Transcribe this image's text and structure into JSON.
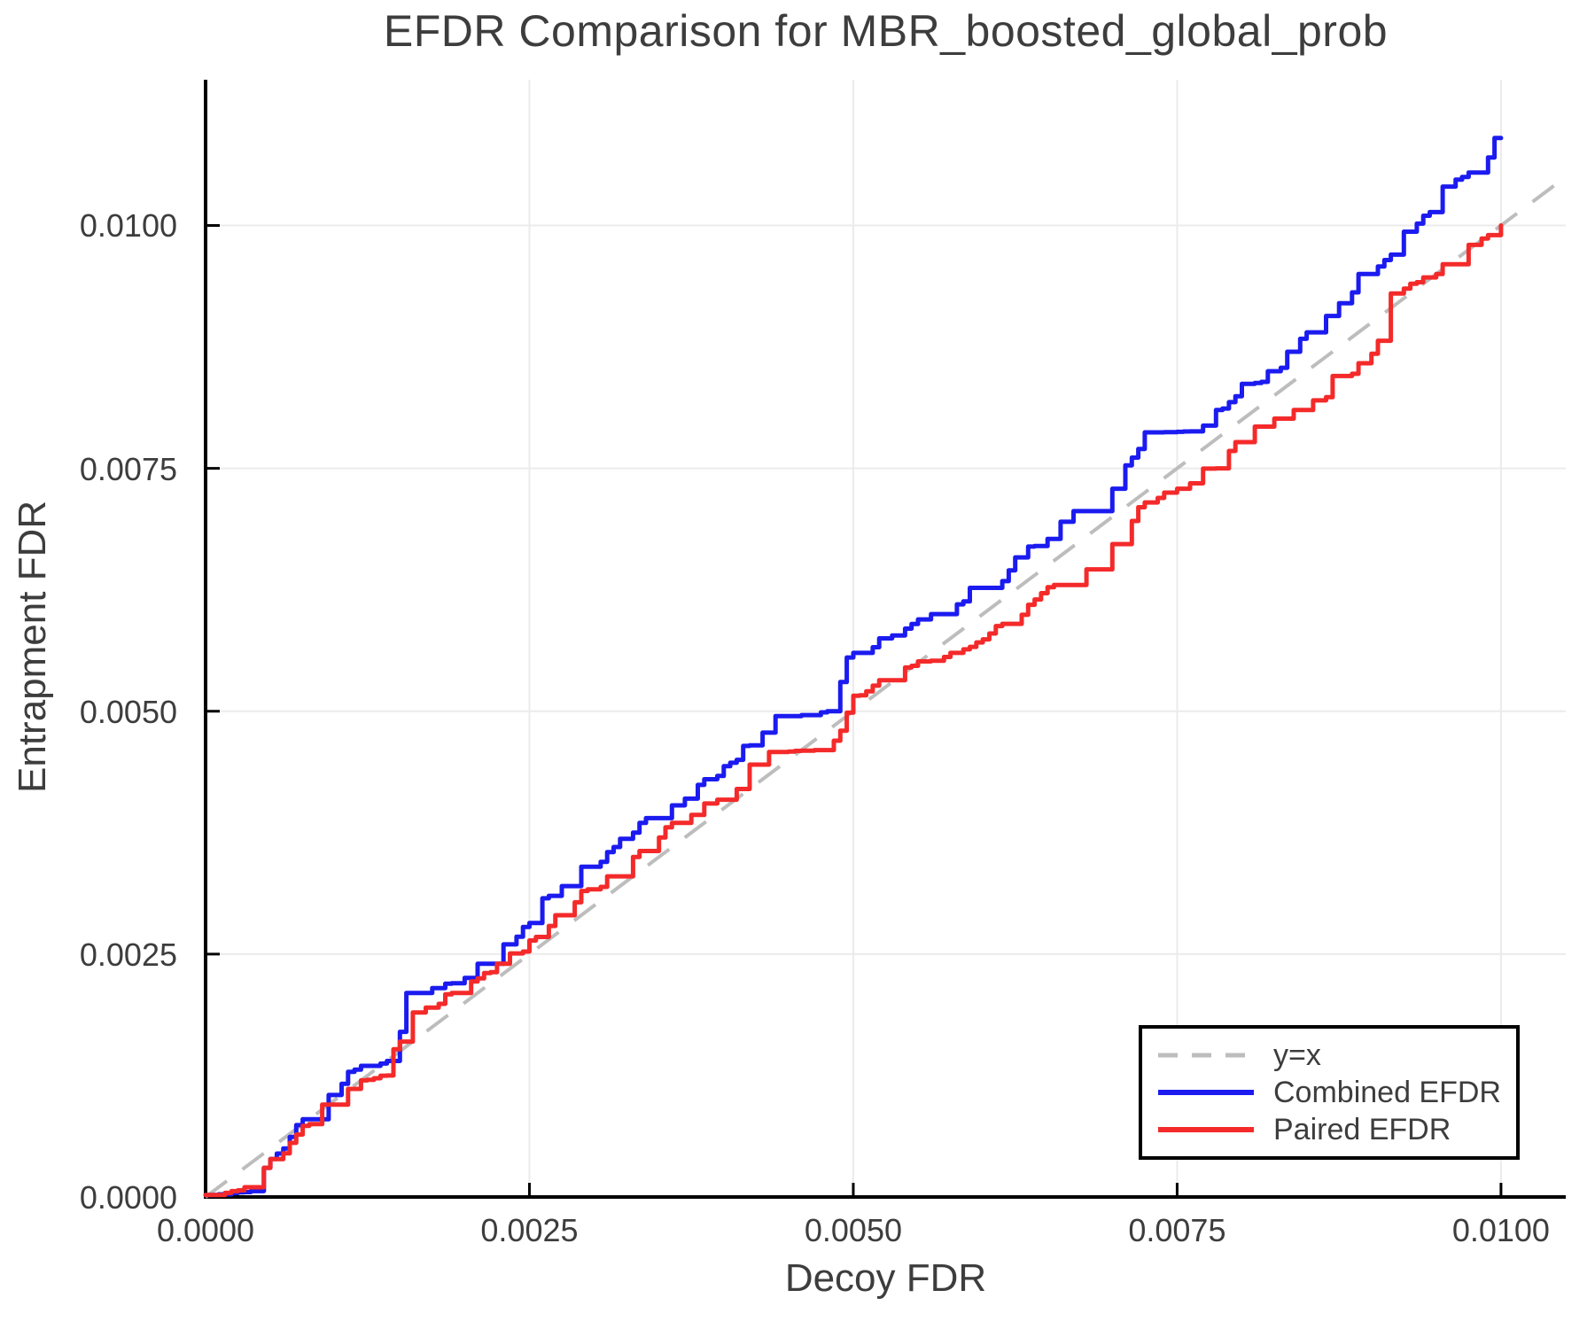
{
  "title": "EFDR Comparison for MBR_boosted_global_prob",
  "axes": {
    "x": {
      "label": "Decoy FDR",
      "tick_labels": [
        "0.0000",
        "0.0025",
        "0.0050",
        "0.0075",
        "0.0100"
      ],
      "tick_values": [
        0,
        0.0025,
        0.005,
        0.0075,
        0.01
      ]
    },
    "y": {
      "label": "Entrapment FDR",
      "tick_labels": [
        "0.0000",
        "0.0025",
        "0.0050",
        "0.0075",
        "0.0100"
      ],
      "tick_values": [
        0,
        0.0025,
        0.005,
        0.0075,
        0.01
      ]
    }
  },
  "legend": {
    "items": [
      {
        "label": "y=x",
        "color": "#bdbdbd",
        "style": "dashed"
      },
      {
        "label": "Combined EFDR",
        "color": "#1b1bf0",
        "style": "solid"
      },
      {
        "label": "Paired EFDR",
        "color": "#f42a2a",
        "style": "solid"
      }
    ]
  },
  "colors": {
    "grid": "#ebebeb",
    "spine": "#000000",
    "text": "#3d3d3d",
    "background": "#ffffff"
  },
  "chart_data": {
    "type": "line",
    "title": "EFDR Comparison for MBR_boosted_global_prob",
    "xlabel": "Decoy FDR",
    "ylabel": "Entrapment FDR",
    "xlim": [
      0,
      0.0105
    ],
    "ylim": [
      0,
      0.0115
    ],
    "grid": true,
    "legend_position": "lower right",
    "series": [
      {
        "name": "y=x",
        "color": "#bdbdbd",
        "style": "dashed",
        "x": [
          0,
          0.0105
        ],
        "y": [
          0,
          0.0105
        ]
      },
      {
        "name": "Combined EFDR",
        "color": "#1b1bf0",
        "style": "solid",
        "x": [
          0,
          0.0002,
          0.0004,
          0.00045,
          0.0006,
          0.0008,
          0.001,
          0.0012,
          0.0014,
          0.0015,
          0.0016,
          0.00175,
          0.0019,
          0.0021,
          0.0023,
          0.0025,
          0.0027,
          0.0029,
          0.0031,
          0.0033,
          0.0035,
          0.0037,
          0.0039,
          0.0041,
          0.0043,
          0.0044,
          0.0048,
          0.0049,
          0.005,
          0.0052,
          0.0054,
          0.0056,
          0.0058,
          0.006,
          0.0062,
          0.0064,
          0.0066,
          0.0068,
          0.007,
          0.0072,
          0.0073,
          0.0076,
          0.0078,
          0.008,
          0.0082,
          0.0084,
          0.0086,
          0.0088,
          0.009,
          0.0092,
          0.0094,
          0.0096,
          0.0097,
          0.0099,
          0.01
        ],
        "y": [
          2e-05,
          4e-05,
          6e-05,
          0.0003,
          0.0005,
          0.0008,
          0.00105,
          0.00135,
          0.0014,
          0.0017,
          0.0021,
          0.00215,
          0.0022,
          0.0024,
          0.0026,
          0.00282,
          0.0031,
          0.0034,
          0.00355,
          0.00375,
          0.0039,
          0.0041,
          0.0043,
          0.0045,
          0.00478,
          0.00495,
          0.005,
          0.0053,
          0.0056,
          0.00575,
          0.00585,
          0.006,
          0.0061,
          0.00627,
          0.00645,
          0.0067,
          0.00695,
          0.00706,
          0.00729,
          0.0077,
          0.00787,
          0.00788,
          0.0081,
          0.00837,
          0.0085,
          0.0087,
          0.0089,
          0.0092,
          0.0095,
          0.0097,
          0.0101,
          0.0104,
          0.0105,
          0.0107,
          0.0109
        ]
      },
      {
        "name": "Paired EFDR",
        "color": "#f42a2a",
        "style": "solid",
        "x": [
          0,
          0.0002,
          0.0004,
          0.00045,
          0.0006,
          0.0008,
          0.001,
          0.0012,
          0.0014,
          0.0015,
          0.0016,
          0.00175,
          0.0019,
          0.0021,
          0.0023,
          0.0025,
          0.0027,
          0.0029,
          0.0031,
          0.0033,
          0.0035,
          0.0037,
          0.0039,
          0.0041,
          0.0043,
          0.0044,
          0.0048,
          0.0049,
          0.005,
          0.0052,
          0.0054,
          0.0056,
          0.0058,
          0.006,
          0.0062,
          0.0064,
          0.0066,
          0.0068,
          0.007,
          0.0072,
          0.0074,
          0.0075,
          0.0078,
          0.008,
          0.0082,
          0.0084,
          0.0086,
          0.0088,
          0.009,
          0.0092,
          0.0093,
          0.0095,
          0.0096,
          0.0098,
          0.0099,
          0.01
        ],
        "y": [
          2e-05,
          6e-05,
          0.0001,
          0.0003,
          0.00045,
          0.00075,
          0.00095,
          0.0012,
          0.00125,
          0.0016,
          0.0019,
          0.00195,
          0.0021,
          0.00225,
          0.0024,
          0.00264,
          0.0029,
          0.00315,
          0.0033,
          0.0035,
          0.0037,
          0.00385,
          0.00405,
          0.0042,
          0.00445,
          0.00458,
          0.0046,
          0.0048,
          0.00516,
          0.00532,
          0.00545,
          0.00552,
          0.0056,
          0.00574,
          0.0059,
          0.00615,
          0.0063,
          0.00646,
          0.00672,
          0.0071,
          0.00725,
          0.00729,
          0.0075,
          0.00777,
          0.00793,
          0.0081,
          0.0082,
          0.00845,
          0.00868,
          0.0093,
          0.0094,
          0.0095,
          0.0096,
          0.0098,
          0.0099,
          0.01
        ]
      }
    ]
  }
}
